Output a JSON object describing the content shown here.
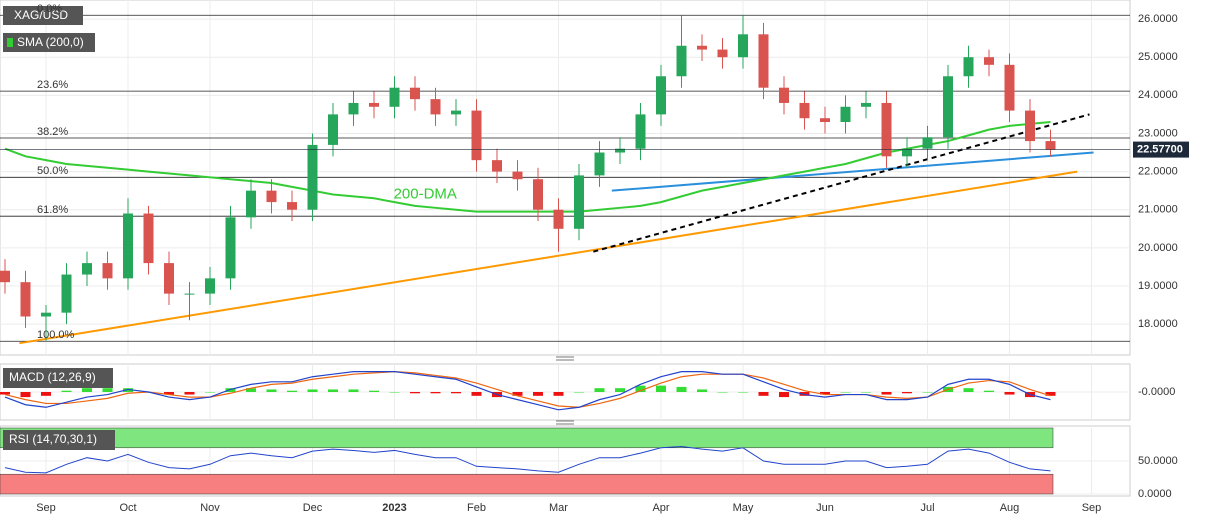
{
  "chart_data": [
    {
      "type": "candlestick",
      "title": "XAG/USD",
      "categories": [
        null,
        null,
        "Sep",
        null,
        null,
        null,
        "Oct",
        null,
        null,
        null,
        "Nov",
        null,
        null,
        null,
        null,
        "Dec",
        null,
        null,
        null,
        "2023",
        null,
        null,
        null,
        "Feb",
        null,
        null,
        null,
        "Mar",
        null,
        null,
        null,
        null,
        "Apr",
        null,
        null,
        null,
        "May",
        null,
        null,
        null,
        "Jun",
        null,
        null,
        null,
        null,
        "Jul",
        null,
        null,
        null,
        "Aug",
        null,
        null,
        null,
        "Sep"
      ],
      "open": [
        19.4,
        19.1,
        18.2,
        18.3,
        19.3,
        19.6,
        19.2,
        20.9,
        19.6,
        18.8,
        18.8,
        19.2,
        20.8,
        21.5,
        21.2,
        21.0,
        22.7,
        23.5,
        23.8,
        23.7,
        24.2,
        23.9,
        23.5,
        23.6,
        22.3,
        22.0,
        21.8,
        21.0,
        20.5,
        21.9,
        22.5,
        22.6,
        23.5,
        24.5,
        25.3,
        25.2,
        25.0,
        25.6,
        24.2,
        23.8,
        23.4,
        23.3,
        23.7,
        23.8,
        22.4,
        22.6,
        22.9,
        24.5,
        25.0,
        24.8,
        23.6,
        22.8,
        null,
        null
      ],
      "high": [
        19.7,
        19.4,
        18.5,
        19.6,
        19.9,
        19.9,
        21.3,
        21.1,
        19.9,
        19.1,
        19.5,
        21.1,
        21.8,
        21.8,
        21.5,
        23.0,
        23.8,
        24.1,
        24.1,
        24.5,
        24.5,
        24.2,
        23.9,
        23.9,
        22.6,
        22.3,
        22.1,
        21.3,
        22.2,
        22.8,
        22.9,
        23.8,
        24.8,
        26.1,
        25.6,
        25.5,
        26.1,
        25.9,
        24.5,
        24.1,
        23.7,
        24.0,
        24.1,
        24.1,
        22.9,
        23.2,
        24.8,
        25.3,
        25.2,
        25.1,
        23.9,
        23.1,
        null,
        null
      ],
      "low": [
        18.8,
        17.9,
        17.55,
        18.0,
        19.0,
        18.9,
        18.9,
        19.3,
        18.5,
        18.1,
        18.5,
        18.9,
        20.5,
        20.9,
        20.7,
        20.7,
        22.4,
        23.2,
        23.4,
        23.4,
        23.6,
        23.2,
        23.2,
        22.0,
        21.7,
        21.5,
        20.7,
        19.9,
        20.2,
        21.6,
        22.2,
        22.3,
        23.2,
        24.2,
        24.9,
        24.7,
        24.7,
        23.9,
        23.5,
        23.1,
        23.0,
        23.0,
        23.4,
        22.1,
        22.1,
        22.3,
        22.6,
        24.2,
        24.5,
        23.3,
        22.5,
        22.4,
        null,
        null
      ],
      "close": [
        19.1,
        18.2,
        18.3,
        19.3,
        19.6,
        19.2,
        20.9,
        19.6,
        18.8,
        18.8,
        19.2,
        20.8,
        21.5,
        21.2,
        21.0,
        22.7,
        23.5,
        23.8,
        23.7,
        24.2,
        23.9,
        23.5,
        23.6,
        22.3,
        22.0,
        21.8,
        21.0,
        20.5,
        21.9,
        22.5,
        22.6,
        23.5,
        24.5,
        25.3,
        25.2,
        25.0,
        25.6,
        24.2,
        23.8,
        23.4,
        23.3,
        23.7,
        23.8,
        22.4,
        22.6,
        22.9,
        24.5,
        25.0,
        24.8,
        23.6,
        22.8,
        22.577,
        null,
        null
      ],
      "up_color": "#26a65b",
      "down_color": "#d9534f",
      "series": [
        {
          "name": "SMA (200,0)",
          "color": "#33cc33",
          "values": [
            22.6,
            22.4,
            22.3,
            22.2,
            22.15,
            22.1,
            22.05,
            22.0,
            21.95,
            21.9,
            21.85,
            21.8,
            21.75,
            21.7,
            21.6,
            21.5,
            21.4,
            21.35,
            21.3,
            21.2,
            21.1,
            21.05,
            21.0,
            20.95,
            20.95,
            20.95,
            20.95,
            20.95,
            20.95,
            21.0,
            21.05,
            21.1,
            21.2,
            21.35,
            21.5,
            21.6,
            21.7,
            21.8,
            21.9,
            22.0,
            22.1,
            22.2,
            22.35,
            22.5,
            22.6,
            22.7,
            22.8,
            22.95,
            23.1,
            23.2,
            23.25,
            23.3,
            null,
            null
          ]
        }
      ],
      "ylim": [
        17.19,
        26.5
      ],
      "yticks": [
        {
          "value": 18,
          "label": "18.0000"
        },
        {
          "value": 19,
          "label": "19.0000"
        },
        {
          "value": 20,
          "label": "20.0000"
        },
        {
          "value": 21,
          "label": "21.0000"
        },
        {
          "value": 22,
          "label": "22.0000"
        },
        {
          "value": 23,
          "label": "23.0000"
        },
        {
          "value": 24,
          "label": "24.0000"
        },
        {
          "value": 25,
          "label": "25.0000"
        },
        {
          "value": 26,
          "label": "26.0000"
        }
      ],
      "grid": true,
      "levels": [
        {
          "label": "0.0%",
          "value": 26.1
        },
        {
          "label": "23.6%",
          "value": 24.11
        },
        {
          "label": "38.2%",
          "value": 22.88
        },
        {
          "label": "50.0%",
          "value": 21.85
        },
        {
          "label": "61.8%",
          "value": 20.83
        },
        {
          "label": "100.0%",
          "value": 17.55
        }
      ],
      "trendlines": [
        {
          "color": "#ff9900",
          "dashed": false,
          "points": [
            [
              0.7,
              17.5
            ],
            [
              52.3,
              22.0
            ]
          ]
        },
        {
          "color": "#2a8fdd",
          "dashed": false,
          "points": [
            [
              29.6,
              21.5
            ],
            [
              53.1,
              22.5
            ]
          ]
        },
        {
          "color": "#000000",
          "dashed": true,
          "points": [
            [
              28.7,
              19.9
            ],
            [
              52.9,
              23.5
            ]
          ]
        }
      ],
      "annotations": [
        {
          "text": "200-DMA",
          "x": 20.5,
          "y": 21.4,
          "color": "#33cc33"
        }
      ],
      "last_value": 22.577,
      "last_value_label": "22.57700"
    },
    {
      "type": "macd",
      "title": "MACD (12,26,9)",
      "macd": {
        "color": "#2244cc",
        "values": [
          -0.2,
          -0.5,
          -0.6,
          -0.4,
          -0.2,
          -0.1,
          0.1,
          0.0,
          -0.2,
          -0.3,
          -0.2,
          0.1,
          0.3,
          0.4,
          0.4,
          0.6,
          0.7,
          0.8,
          0.8,
          0.8,
          0.7,
          0.6,
          0.5,
          0.2,
          -0.1,
          -0.3,
          -0.5,
          -0.7,
          -0.6,
          -0.3,
          -0.1,
          0.3,
          0.6,
          0.8,
          0.8,
          0.7,
          0.7,
          0.4,
          0.1,
          -0.1,
          -0.2,
          -0.1,
          -0.1,
          -0.3,
          -0.3,
          -0.2,
          0.3,
          0.5,
          0.5,
          0.3,
          -0.1,
          -0.3,
          null,
          null
        ]
      },
      "signal": {
        "color": "#ee6611",
        "values": [
          -0.1,
          -0.3,
          -0.45,
          -0.45,
          -0.35,
          -0.25,
          -0.05,
          0.0,
          -0.1,
          -0.2,
          -0.2,
          -0.05,
          0.15,
          0.3,
          0.35,
          0.5,
          0.6,
          0.7,
          0.75,
          0.8,
          0.75,
          0.65,
          0.55,
          0.35,
          0.1,
          -0.15,
          -0.35,
          -0.55,
          -0.6,
          -0.45,
          -0.25,
          0.05,
          0.35,
          0.6,
          0.7,
          0.7,
          0.7,
          0.55,
          0.3,
          0.05,
          -0.1,
          -0.1,
          -0.1,
          -0.2,
          -0.25,
          -0.2,
          0.1,
          0.35,
          0.45,
          0.4,
          0.1,
          -0.15,
          null,
          null
        ]
      },
      "histogram": {
        "up_color": "#33dd33",
        "down_color": "#ee1111",
        "values": [
          -0.1,
          -0.2,
          -0.15,
          0.05,
          0.15,
          0.15,
          0.15,
          0.0,
          -0.1,
          -0.1,
          0.0,
          0.15,
          0.15,
          0.1,
          0.05,
          0.1,
          0.1,
          0.1,
          0.05,
          0.0,
          -0.05,
          -0.05,
          -0.05,
          -0.15,
          -0.2,
          -0.15,
          -0.15,
          -0.15,
          0.0,
          0.15,
          0.15,
          0.25,
          0.25,
          0.2,
          0.1,
          0.0,
          0.0,
          -0.15,
          -0.2,
          -0.15,
          -0.1,
          0.0,
          0.0,
          -0.1,
          -0.05,
          0.0,
          0.2,
          0.15,
          0.05,
          -0.1,
          -0.2,
          -0.15,
          null,
          null
        ]
      },
      "ylim": [
        -1.1,
        1.1
      ],
      "yticks": [
        {
          "value": 0,
          "label": "-0.0000"
        }
      ]
    },
    {
      "type": "rsi",
      "title": "RSI (14,70,30,1)",
      "color": "#2244cc",
      "values": [
        40,
        33,
        32,
        45,
        55,
        50,
        60,
        48,
        40,
        38,
        45,
        58,
        62,
        58,
        55,
        65,
        68,
        66,
        63,
        66,
        60,
        55,
        55,
        42,
        40,
        38,
        35,
        33,
        45,
        55,
        55,
        62,
        70,
        72,
        68,
        65,
        70,
        50,
        45,
        45,
        45,
        50,
        50,
        40,
        42,
        45,
        65,
        68,
        62,
        48,
        38,
        35,
        null,
        null
      ],
      "bands": [
        {
          "from": 70,
          "to": 100,
          "color": "#7fe57f"
        },
        {
          "from": 0,
          "to": 30,
          "color": "#f77f7f"
        }
      ],
      "ylim": [
        0,
        100
      ],
      "yticks": [
        {
          "value": 0,
          "label": "0.0000"
        },
        {
          "value": 50,
          "label": "50.0000"
        }
      ]
    }
  ]
}
